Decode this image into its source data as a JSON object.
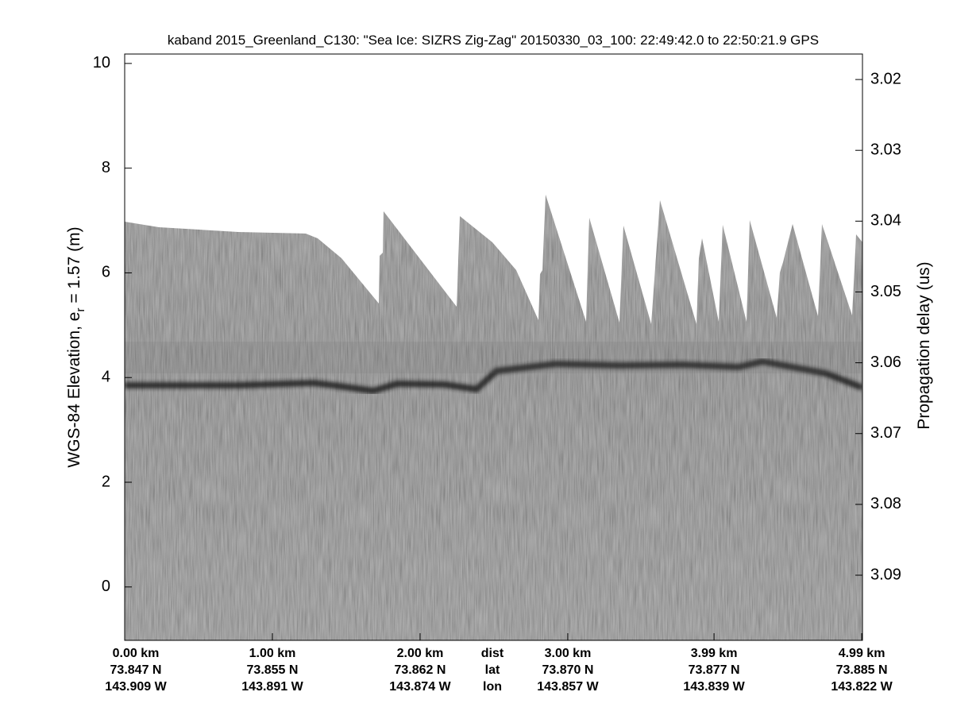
{
  "chart_data": {
    "type": "echogram",
    "title": "kaband 2015_Greenland_C130: \"Sea Ice: SIZRS Zig-Zag\"  20150330_03_100: 22:49:42.0 to 22:50:21.9 GPS",
    "ylabel": {
      "text": "WGS-84 Elevation, e",
      "sub": "r",
      "rest": " = 1.57 (m)"
    },
    "y2label": "Propagation delay (us)",
    "xlim": [
      0,
      4.995
    ],
    "xticks": [
      {
        "value": 0,
        "label": "0.00 km"
      },
      {
        "value": 1,
        "label": "1.00 km"
      },
      {
        "value": 2,
        "label": "2.00 km"
      },
      {
        "value": 3,
        "label": "3.00 km"
      },
      {
        "value": 3.99,
        "label": "3.99 km"
      },
      {
        "value": 4.99,
        "label": "4.99 km"
      }
    ],
    "xtick_lat": [
      "73.847 N",
      "73.855 N",
      "73.862 N",
      "73.870 N",
      "73.877 N",
      "73.885 N"
    ],
    "xtick_lon": [
      "143.909 W",
      "143.891 W",
      "143.874 W",
      "143.857 W",
      "143.839 W",
      "143.822 W"
    ],
    "row_labels": [
      "dist",
      "lat",
      "lon"
    ],
    "ylim": [
      -1.02,
      10.18
    ],
    "yticks": [
      0,
      2,
      4,
      6,
      8,
      10
    ],
    "y2lim": [
      3.0992,
      3.0164
    ],
    "y2ticks": [
      3.02,
      3.03,
      3.04,
      3.05,
      3.06,
      3.07,
      3.08,
      3.09
    ]
  }
}
